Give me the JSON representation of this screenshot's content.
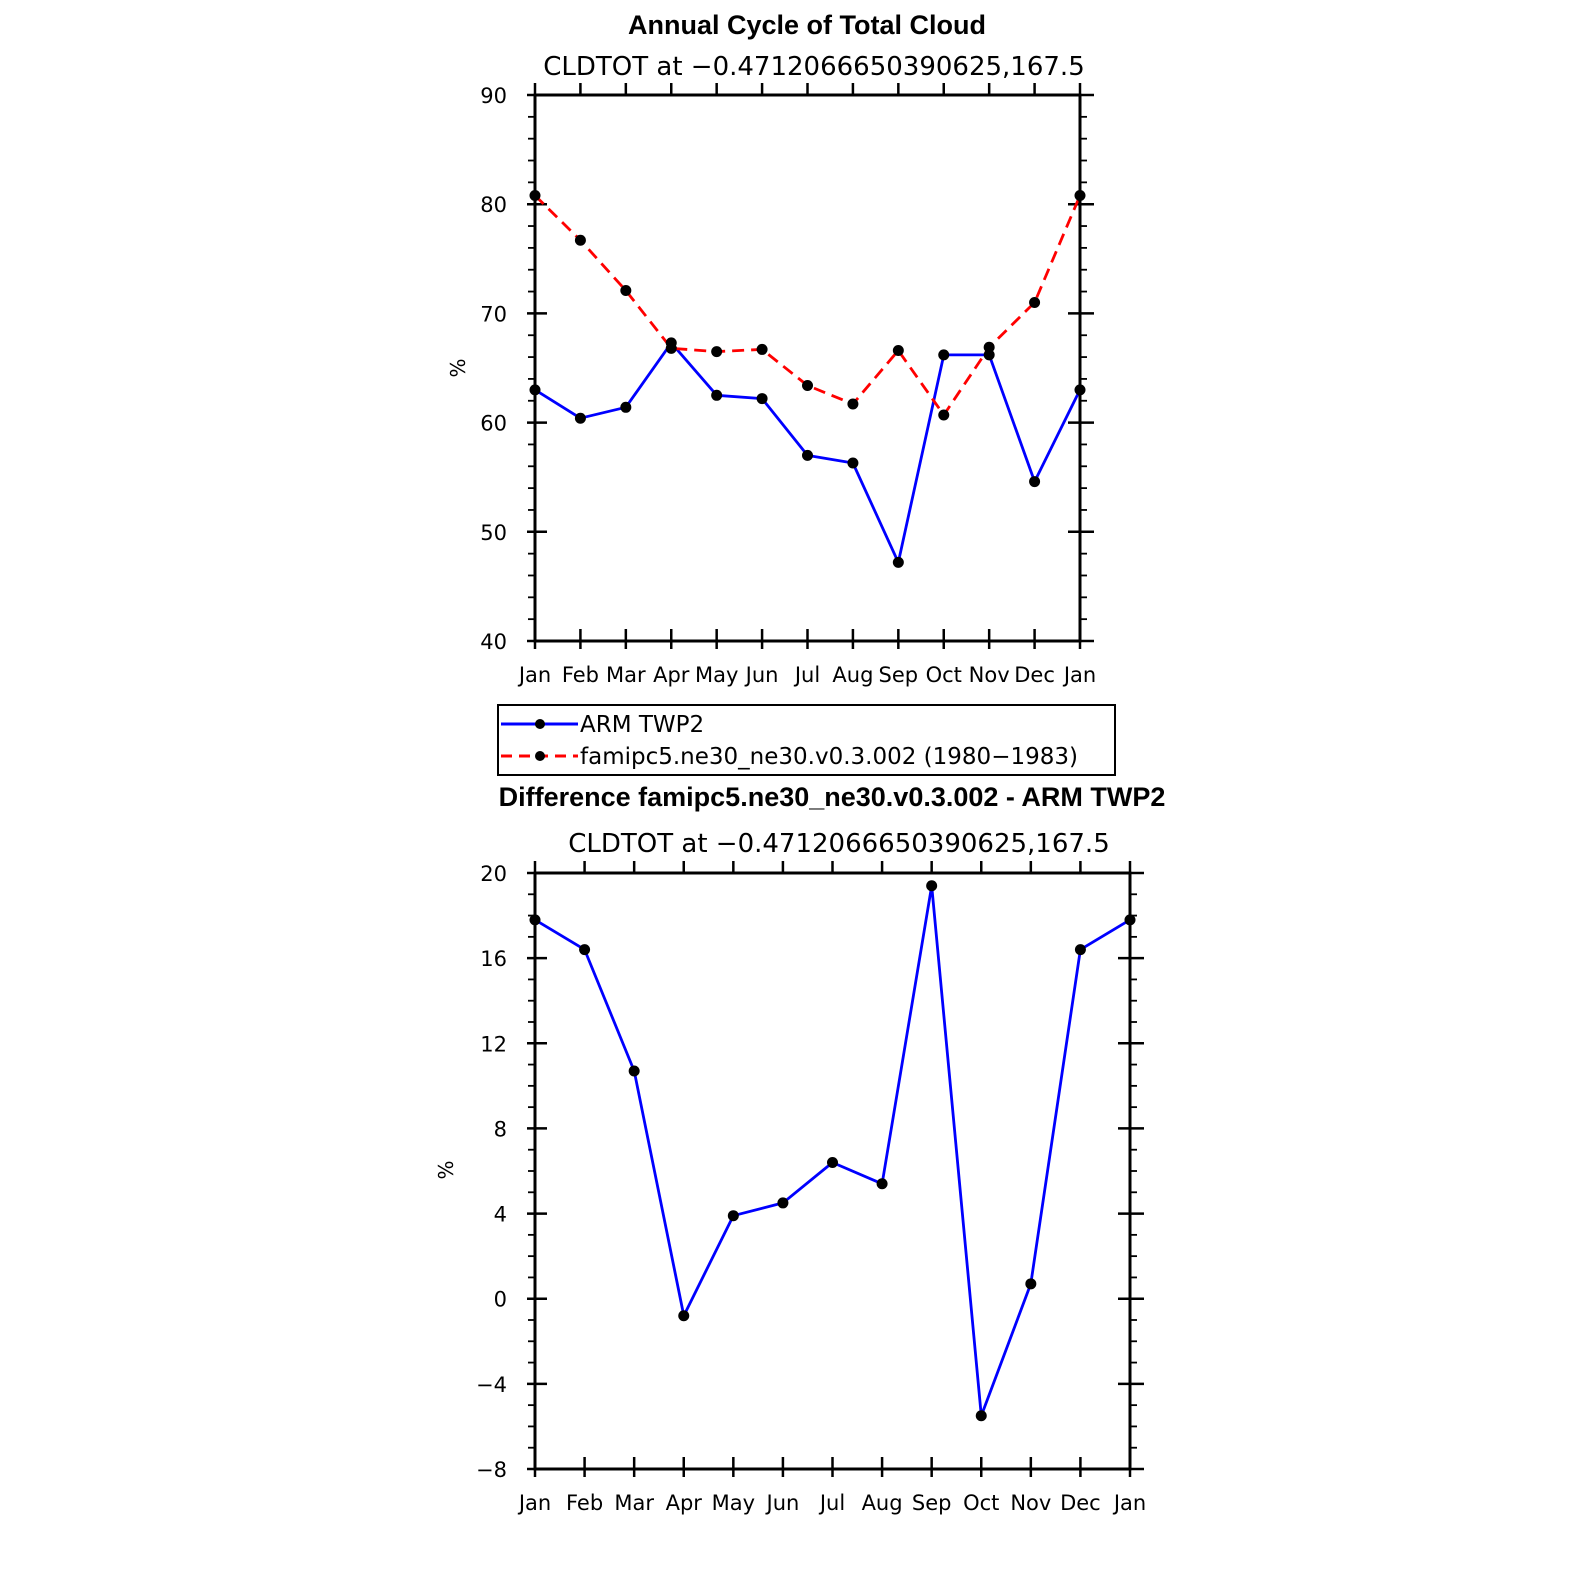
{
  "chart_data": [
    {
      "type": "line",
      "title": "Annual Cycle of Total Cloud",
      "subtitle": "CLDTOT at −0.4712066650390625,167.5",
      "xlabel": "",
      "ylabel": "%",
      "categories": [
        "Jan",
        "Feb",
        "Mar",
        "Apr",
        "May",
        "Jun",
        "Jul",
        "Aug",
        "Sep",
        "Oct",
        "Nov",
        "Dec",
        "Jan"
      ],
      "ylim": [
        40,
        90
      ],
      "yticks": [
        40,
        50,
        60,
        70,
        80,
        90
      ],
      "yticklabels": [
        "40",
        "50",
        "60",
        "70",
        "80",
        "90"
      ],
      "series": [
        {
          "name": "ARM TWP2",
          "color": "#0000ff",
          "dash": "solid",
          "values": [
            63.0,
            60.4,
            61.4,
            67.3,
            62.5,
            62.2,
            57.0,
            56.3,
            47.2,
            66.2,
            66.2,
            54.6,
            63.0
          ]
        },
        {
          "name": "famipc5.ne30_ne30.v0.3.002 (1980−1983)",
          "color": "#ff0000",
          "dash": "dashed",
          "values": [
            80.8,
            76.7,
            72.1,
            66.8,
            66.5,
            66.7,
            63.4,
            61.7,
            66.6,
            60.7,
            66.9,
            71.0,
            80.8
          ]
        }
      ],
      "legend": {
        "position": "below"
      }
    },
    {
      "type": "line",
      "title": "Difference famipc5.ne30_ne30.v0.3.002 - ARM TWP2",
      "subtitle": "CLDTOT at −0.4712066650390625,167.5",
      "xlabel": "",
      "ylabel": "%",
      "categories": [
        "Jan",
        "Feb",
        "Mar",
        "Apr",
        "May",
        "Jun",
        "Jul",
        "Aug",
        "Sep",
        "Oct",
        "Nov",
        "Dec",
        "Jan"
      ],
      "ylim": [
        -8,
        20
      ],
      "yticks": [
        -8,
        -4,
        0,
        4,
        8,
        12,
        16,
        20
      ],
      "yticklabels": [
        "−8",
        "−4",
        "0",
        "4",
        "8",
        "12",
        "16",
        "20"
      ],
      "series": [
        {
          "name": "Difference",
          "color": "#0000ff",
          "dash": "solid",
          "values": [
            17.8,
            16.4,
            10.7,
            -0.8,
            3.9,
            4.5,
            6.4,
            5.4,
            19.4,
            -5.5,
            0.7,
            16.4,
            17.8
          ]
        }
      ]
    }
  ]
}
